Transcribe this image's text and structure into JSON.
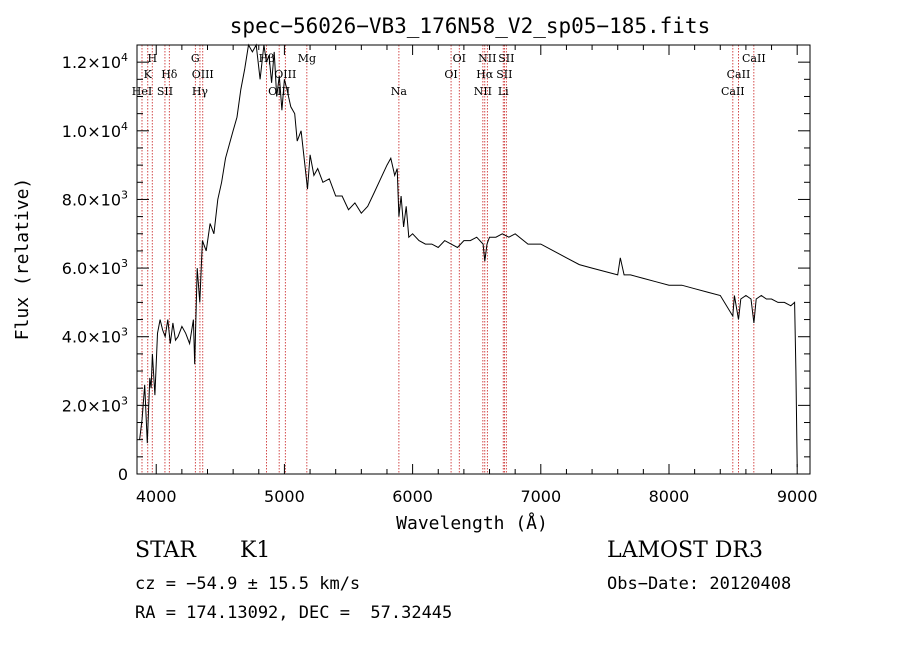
{
  "chart_data": {
    "type": "line",
    "title": "spec−56026−VB3_176N58_V2_sp05−185.fits",
    "xlabel": "Wavelength (Å)",
    "ylabel": "Flux (relative)",
    "xlim": [
      3850,
      9100
    ],
    "ylim": [
      0,
      12500
    ],
    "x_ticks": [
      {
        "value": 4000,
        "label": "4000"
      },
      {
        "value": 5000,
        "label": "5000"
      },
      {
        "value": 6000,
        "label": "6000"
      },
      {
        "value": 7000,
        "label": "7000"
      },
      {
        "value": 8000,
        "label": "8000"
      },
      {
        "value": 9000,
        "label": "9000"
      }
    ],
    "y_ticks": [
      {
        "value": 0,
        "mantissa": "0",
        "exponent": ""
      },
      {
        "value": 2000,
        "mantissa": "2.0×10",
        "exponent": "3"
      },
      {
        "value": 4000,
        "mantissa": "4.0×10",
        "exponent": "3"
      },
      {
        "value": 6000,
        "mantissa": "6.0×10",
        "exponent": "3"
      },
      {
        "value": 8000,
        "mantissa": "8.0×10",
        "exponent": "3"
      },
      {
        "value": 10000,
        "mantissa": "1.0×10",
        "exponent": "4"
      },
      {
        "value": 12000,
        "mantissa": "1.2×10",
        "exponent": "4"
      }
    ],
    "series": [
      {
        "name": "flux",
        "x": [
          3870,
          3890,
          3910,
          3930,
          3950,
          3960,
          3970,
          3990,
          4010,
          4030,
          4050,
          4070,
          4090,
          4110,
          4130,
          4150,
          4170,
          4200,
          4230,
          4260,
          4290,
          4300,
          4320,
          4340,
          4360,
          4390,
          4420,
          4450,
          4480,
          4510,
          4540,
          4570,
          4600,
          4630,
          4660,
          4690,
          4720,
          4750,
          4780,
          4810,
          4840,
          4860,
          4880,
          4900,
          4920,
          4940,
          4960,
          4980,
          5000,
          5020,
          5050,
          5080,
          5100,
          5130,
          5160,
          5180,
          5200,
          5230,
          5260,
          5300,
          5350,
          5400,
          5450,
          5500,
          5550,
          5600,
          5650,
          5700,
          5750,
          5800,
          5830,
          5860,
          5880,
          5893,
          5910,
          5930,
          5950,
          5970,
          6000,
          6050,
          6100,
          6150,
          6200,
          6250,
          6300,
          6350,
          6400,
          6450,
          6500,
          6550,
          6563,
          6580,
          6600,
          6650,
          6700,
          6750,
          6800,
          6900,
          7000,
          7100,
          7200,
          7300,
          7400,
          7500,
          7600,
          7620,
          7650,
          7700,
          7800,
          7900,
          8000,
          8100,
          8200,
          8300,
          8400,
          8498,
          8510,
          8542,
          8560,
          8600,
          8640,
          8662,
          8680,
          8720,
          8760,
          8800,
          8850,
          8900,
          8950,
          8980,
          8990,
          9000
        ],
        "values": [
          1000,
          1600,
          2600,
          900,
          2800,
          2500,
          3500,
          2300,
          4100,
          4500,
          4200,
          4000,
          4500,
          3800,
          4400,
          3900,
          4000,
          4300,
          4100,
          3800,
          4500,
          3200,
          6000,
          5000,
          6800,
          6500,
          7300,
          7000,
          8000,
          8500,
          9200,
          9600,
          10000,
          10400,
          11200,
          11800,
          12500,
          12300,
          12600,
          11500,
          12800,
          12000,
          12200,
          11400,
          12300,
          11000,
          11600,
          10600,
          11500,
          11200,
          10700,
          10500,
          9700,
          10000,
          9000,
          8300,
          9300,
          8700,
          8900,
          8500,
          8600,
          8100,
          8100,
          7700,
          7900,
          7600,
          7800,
          8200,
          8600,
          9000,
          9200,
          8700,
          8900,
          7500,
          8100,
          7200,
          7800,
          6900,
          7000,
          6800,
          6700,
          6700,
          6600,
          6800,
          6700,
          6600,
          6800,
          6800,
          6900,
          6700,
          6200,
          6700,
          6900,
          6900,
          7000,
          6900,
          7000,
          6700,
          6700,
          6500,
          6300,
          6100,
          6000,
          5900,
          5800,
          6300,
          5800,
          5800,
          5700,
          5600,
          5500,
          5500,
          5400,
          5300,
          5200,
          4600,
          5200,
          4500,
          5100,
          5200,
          5100,
          4400,
          5100,
          5200,
          5100,
          5100,
          5000,
          5000,
          4900,
          5000,
          3000,
          200
        ]
      }
    ],
    "line_annotations": [
      {
        "label": "HeI",
        "wavelength": 3889,
        "row": 3
      },
      {
        "label": "K",
        "wavelength": 3934,
        "row": 2
      },
      {
        "label": "H",
        "wavelength": 3969,
        "row": 1
      },
      {
        "label": "SII",
        "wavelength": 4068,
        "row": 3
      },
      {
        "label": "Hδ",
        "wavelength": 4102,
        "row": 2
      },
      {
        "label": "G",
        "wavelength": 4305,
        "row": 1
      },
      {
        "label": "Hγ",
        "wavelength": 4341,
        "row": 3
      },
      {
        "label": "OIII",
        "wavelength": 4363,
        "row": 2
      },
      {
        "label": "Hβ",
        "wavelength": 4861,
        "row": 1
      },
      {
        "label": "OIII",
        "wavelength": 4959,
        "row": 3
      },
      {
        "label": "OIII",
        "wavelength": 5007,
        "row": 2
      },
      {
        "label": "Mg",
        "wavelength": 5175,
        "row": 1
      },
      {
        "label": "Na",
        "wavelength": 5893,
        "row": 3
      },
      {
        "label": "OI",
        "wavelength": 6300,
        "row": 2
      },
      {
        "label": "OI",
        "wavelength": 6364,
        "row": 1
      },
      {
        "label": "NII",
        "wavelength": 6548,
        "row": 3
      },
      {
        "label": "Hα",
        "wavelength": 6563,
        "row": 2
      },
      {
        "label": "NII",
        "wavelength": 6583,
        "row": 1
      },
      {
        "label": "Li",
        "wavelength": 6707,
        "row": 3
      },
      {
        "label": "SII",
        "wavelength": 6716,
        "row": 2
      },
      {
        "label": "SII",
        "wavelength": 6731,
        "row": 1
      },
      {
        "label": "CaII",
        "wavelength": 8498,
        "row": 3
      },
      {
        "label": "CaII",
        "wavelength": 8542,
        "row": 2
      },
      {
        "label": "CaII",
        "wavelength": 8662,
        "row": 1
      }
    ],
    "colors": {
      "spectrum": "#000000",
      "line_markers": "#c81e1e",
      "axes": "#000000"
    }
  },
  "info": {
    "class_label": "STAR",
    "subclass": "K1",
    "survey": "LAMOST DR3",
    "redshift_line": "cz = −54.9 ± 15.5 km/s",
    "obs_date_line": "Obs−Date: 20120408",
    "coords_line": "RA = 174.13092, DEC =  57.32445"
  }
}
